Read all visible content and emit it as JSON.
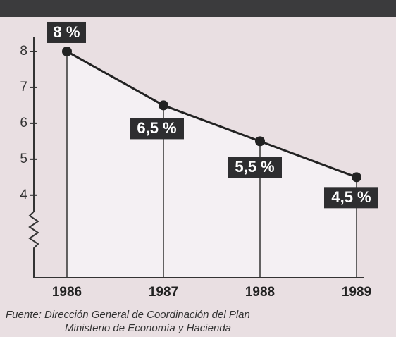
{
  "chart_data": {
    "type": "line",
    "categories": [
      "1986",
      "1987",
      "1988",
      "1989"
    ],
    "values": [
      8,
      6.5,
      5.5,
      4.5
    ],
    "value_labels": [
      "8 %",
      "6,5 %",
      "5,5 %",
      "4,5 %"
    ],
    "color": "#222222",
    "ylim": [
      1.7,
      8.4
    ],
    "yticks": [
      4,
      5,
      6,
      7,
      8
    ],
    "source": [
      "Fuente: Dirección General de Coordinación del Plan",
      "Ministerio de Economía y Hacienda"
    ]
  }
}
